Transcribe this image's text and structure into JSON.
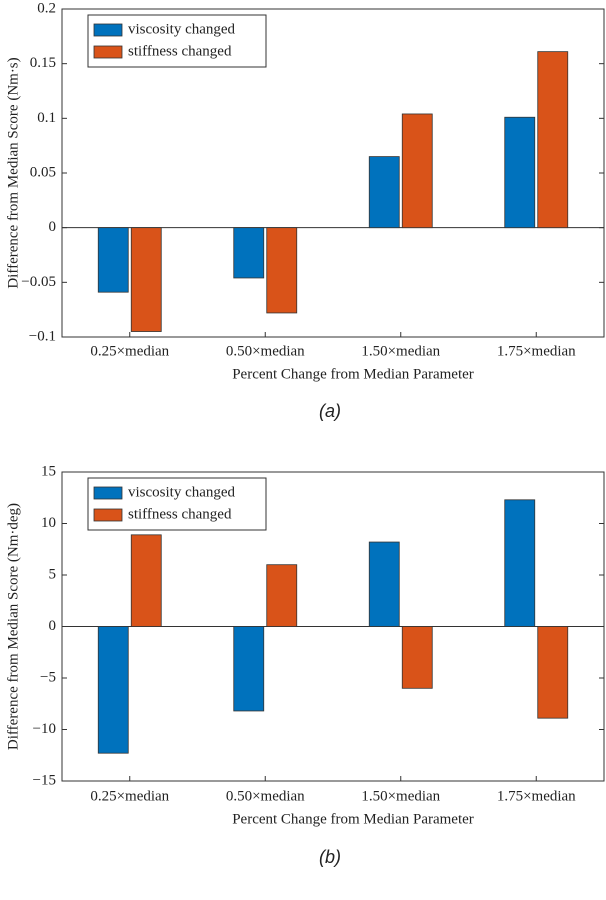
{
  "chart_data": [
    {
      "type": "bar",
      "categories": [
        "0.25×median",
        "0.50×median",
        "1.50×median",
        "1.75×median"
      ],
      "series": [
        {
          "name": "viscosity changed",
          "color": "#0072bd",
          "values": [
            -0.059,
            -0.046,
            0.065,
            0.101
          ]
        },
        {
          "name": "stiffness changed",
          "color": "#d95319",
          "values": [
            -0.095,
            -0.078,
            0.104,
            0.161
          ]
        }
      ],
      "ylim": [
        -0.1,
        0.2
      ],
      "yticks": [
        {
          "value": -0.1,
          "label": "−0.1"
        },
        {
          "value": -0.05,
          "label": "−0.05"
        },
        0,
        0.05,
        0.1,
        0.15,
        0.2
      ],
      "ylabel": "Difference from Median Score (Nm·s)",
      "xlabel": "Percent Change from Median Parameter",
      "caption": "(a)",
      "legend": "upper left"
    },
    {
      "type": "bar",
      "categories": [
        "0.25×median",
        "0.50×median",
        "1.50×median",
        "1.75×median"
      ],
      "series": [
        {
          "name": "viscosity changed",
          "color": "#0072bd",
          "values": [
            -12.3,
            -8.2,
            8.2,
            12.3
          ]
        },
        {
          "name": "stiffness changed",
          "color": "#d95319",
          "values": [
            8.9,
            6.0,
            -6.0,
            -8.9
          ]
        }
      ],
      "ylim": [
        -15,
        15
      ],
      "yticks": [
        {
          "value": -15,
          "label": "−15"
        },
        {
          "value": -10,
          "label": "−10"
        },
        {
          "value": -5,
          "label": "−5"
        },
        0,
        5,
        10,
        15
      ],
      "ylabel": "Difference from Median Score (Nm·deg)",
      "xlabel": "Percent Change from Median Parameter",
      "caption": "(b)",
      "legend": "upper left"
    }
  ]
}
